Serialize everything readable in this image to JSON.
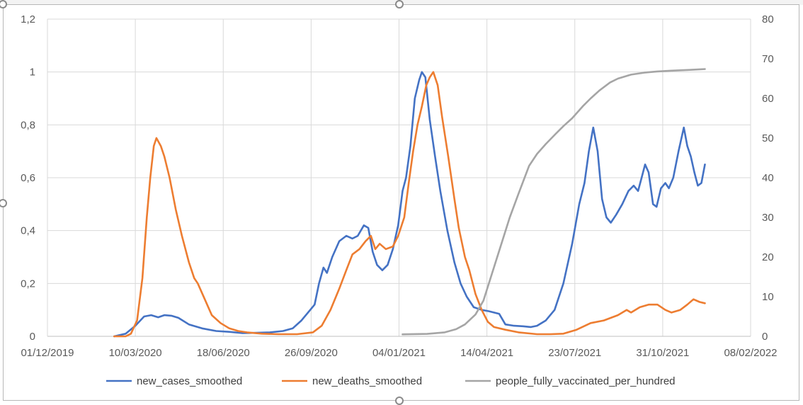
{
  "chart_data": {
    "type": "line",
    "title": "",
    "xlabel": "",
    "ylabel": "",
    "x_axis": {
      "min": "2019-12-01",
      "max": "2022-02-08",
      "tick_labels": [
        "01/12/2019",
        "10/03/2020",
        "18/06/2020",
        "26/09/2020",
        "04/01/2021",
        "14/04/2021",
        "23/07/2021",
        "31/10/2021",
        "08/02/2022"
      ],
      "tick_dates": [
        "2019-12-01",
        "2020-03-10",
        "2020-06-18",
        "2020-09-26",
        "2021-01-04",
        "2021-04-14",
        "2021-07-23",
        "2021-10-31",
        "2022-02-08"
      ]
    },
    "y_left": {
      "min": 0,
      "max": 1.2,
      "tick_values": [
        0,
        0.2,
        0.4,
        0.6,
        0.8,
        1,
        1.2
      ],
      "tick_labels": [
        "0",
        "0,2",
        "0,4",
        "0,6",
        "0,8",
        "1",
        "1,2"
      ]
    },
    "y_right": {
      "min": 0,
      "max": 80,
      "tick_values": [
        0,
        10,
        20,
        30,
        40,
        50,
        60,
        70,
        80
      ],
      "tick_labels": [
        "0",
        "10",
        "20",
        "30",
        "40",
        "50",
        "60",
        "70",
        "80"
      ]
    },
    "grid": true,
    "legend_position": "bottom",
    "series": [
      {
        "name": "new_cases_smoothed",
        "axis": "left",
        "color": "#4472c4",
        "points": [
          [
            "2020-02-15",
            0
          ],
          [
            "2020-02-28",
            0.01
          ],
          [
            "2020-03-10",
            0.04
          ],
          [
            "2020-03-20",
            0.075
          ],
          [
            "2020-03-28",
            0.08
          ],
          [
            "2020-04-05",
            0.072
          ],
          [
            "2020-04-12",
            0.08
          ],
          [
            "2020-04-20",
            0.078
          ],
          [
            "2020-04-28",
            0.07
          ],
          [
            "2020-05-10",
            0.045
          ],
          [
            "2020-05-25",
            0.03
          ],
          [
            "2020-06-10",
            0.02
          ],
          [
            "2020-06-25",
            0.017
          ],
          [
            "2020-07-10",
            0.012
          ],
          [
            "2020-07-25",
            0.013
          ],
          [
            "2020-08-10",
            0.015
          ],
          [
            "2020-08-25",
            0.02
          ],
          [
            "2020-09-05",
            0.03
          ],
          [
            "2020-09-15",
            0.06
          ],
          [
            "2020-09-25",
            0.1
          ],
          [
            "2020-09-30",
            0.12
          ],
          [
            "2020-10-05",
            0.2
          ],
          [
            "2020-10-10",
            0.26
          ],
          [
            "2020-10-14",
            0.24
          ],
          [
            "2020-10-20",
            0.3
          ],
          [
            "2020-10-28",
            0.36
          ],
          [
            "2020-11-05",
            0.38
          ],
          [
            "2020-11-12",
            0.37
          ],
          [
            "2020-11-18",
            0.38
          ],
          [
            "2020-11-25",
            0.42
          ],
          [
            "2020-11-30",
            0.41
          ],
          [
            "2020-12-05",
            0.32
          ],
          [
            "2020-12-10",
            0.27
          ],
          [
            "2020-12-16",
            0.25
          ],
          [
            "2020-12-22",
            0.27
          ],
          [
            "2020-12-28",
            0.33
          ],
          [
            "2021-01-03",
            0.42
          ],
          [
            "2021-01-08",
            0.55
          ],
          [
            "2021-01-12",
            0.6
          ],
          [
            "2021-01-17",
            0.72
          ],
          [
            "2021-01-22",
            0.9
          ],
          [
            "2021-01-27",
            0.97
          ],
          [
            "2021-01-30",
            1.0
          ],
          [
            "2021-02-03",
            0.98
          ],
          [
            "2021-02-08",
            0.82
          ],
          [
            "2021-02-14",
            0.68
          ],
          [
            "2021-02-20",
            0.55
          ],
          [
            "2021-02-28",
            0.4
          ],
          [
            "2021-03-08",
            0.28
          ],
          [
            "2021-03-15",
            0.2
          ],
          [
            "2021-03-22",
            0.15
          ],
          [
            "2021-03-30",
            0.11
          ],
          [
            "2021-04-08",
            0.1
          ],
          [
            "2021-04-16",
            0.095
          ],
          [
            "2021-04-22",
            0.09
          ],
          [
            "2021-04-28",
            0.085
          ],
          [
            "2021-05-05",
            0.045
          ],
          [
            "2021-05-15",
            0.04
          ],
          [
            "2021-05-25",
            0.038
          ],
          [
            "2021-06-03",
            0.035
          ],
          [
            "2021-06-10",
            0.04
          ],
          [
            "2021-06-20",
            0.06
          ],
          [
            "2021-06-30",
            0.1
          ],
          [
            "2021-07-10",
            0.2
          ],
          [
            "2021-07-20",
            0.35
          ],
          [
            "2021-07-28",
            0.5
          ],
          [
            "2021-08-03",
            0.58
          ],
          [
            "2021-08-08",
            0.7
          ],
          [
            "2021-08-13",
            0.79
          ],
          [
            "2021-08-18",
            0.7
          ],
          [
            "2021-08-23",
            0.52
          ],
          [
            "2021-08-28",
            0.45
          ],
          [
            "2021-09-02",
            0.43
          ],
          [
            "2021-09-08",
            0.46
          ],
          [
            "2021-09-15",
            0.5
          ],
          [
            "2021-09-22",
            0.55
          ],
          [
            "2021-09-28",
            0.57
          ],
          [
            "2021-10-03",
            0.55
          ],
          [
            "2021-10-07",
            0.6
          ],
          [
            "2021-10-11",
            0.65
          ],
          [
            "2021-10-15",
            0.62
          ],
          [
            "2021-10-20",
            0.5
          ],
          [
            "2021-10-24",
            0.49
          ],
          [
            "2021-10-29",
            0.56
          ],
          [
            "2021-11-03",
            0.58
          ],
          [
            "2021-11-07",
            0.56
          ],
          [
            "2021-11-12",
            0.6
          ],
          [
            "2021-11-18",
            0.7
          ],
          [
            "2021-11-24",
            0.79
          ],
          [
            "2021-11-28",
            0.72
          ],
          [
            "2021-12-02",
            0.68
          ],
          [
            "2021-12-06",
            0.62
          ],
          [
            "2021-12-10",
            0.57
          ],
          [
            "2021-12-14",
            0.58
          ],
          [
            "2021-12-18",
            0.65
          ]
        ]
      },
      {
        "name": "new_deaths_smoothed",
        "axis": "left",
        "color": "#ed7d31",
        "points": [
          [
            "2020-02-15",
            0
          ],
          [
            "2020-02-28",
            0
          ],
          [
            "2020-03-05",
            0.01
          ],
          [
            "2020-03-12",
            0.06
          ],
          [
            "2020-03-18",
            0.22
          ],
          [
            "2020-03-23",
            0.45
          ],
          [
            "2020-03-27",
            0.6
          ],
          [
            "2020-03-31",
            0.72
          ],
          [
            "2020-04-03",
            0.75
          ],
          [
            "2020-04-08",
            0.72
          ],
          [
            "2020-04-12",
            0.68
          ],
          [
            "2020-04-18",
            0.6
          ],
          [
            "2020-04-25",
            0.48
          ],
          [
            "2020-05-02",
            0.38
          ],
          [
            "2020-05-10",
            0.28
          ],
          [
            "2020-05-16",
            0.22
          ],
          [
            "2020-05-20",
            0.2
          ],
          [
            "2020-05-28",
            0.14
          ],
          [
            "2020-06-05",
            0.08
          ],
          [
            "2020-06-15",
            0.05
          ],
          [
            "2020-06-25",
            0.03
          ],
          [
            "2020-07-05",
            0.02
          ],
          [
            "2020-07-15",
            0.015
          ],
          [
            "2020-08-01",
            0.01
          ],
          [
            "2020-08-20",
            0.008
          ],
          [
            "2020-09-10",
            0.008
          ],
          [
            "2020-09-28",
            0.015
          ],
          [
            "2020-10-08",
            0.04
          ],
          [
            "2020-10-18",
            0.1
          ],
          [
            "2020-10-28",
            0.18
          ],
          [
            "2020-11-05",
            0.25
          ],
          [
            "2020-11-12",
            0.31
          ],
          [
            "2020-11-20",
            0.33
          ],
          [
            "2020-11-27",
            0.36
          ],
          [
            "2020-12-03",
            0.38
          ],
          [
            "2020-12-08",
            0.33
          ],
          [
            "2020-12-13",
            0.35
          ],
          [
            "2020-12-20",
            0.33
          ],
          [
            "2020-12-28",
            0.34
          ],
          [
            "2021-01-03",
            0.38
          ],
          [
            "2021-01-10",
            0.45
          ],
          [
            "2021-01-15",
            0.58
          ],
          [
            "2021-01-20",
            0.7
          ],
          [
            "2021-01-25",
            0.8
          ],
          [
            "2021-01-30",
            0.87
          ],
          [
            "2021-02-04",
            0.95
          ],
          [
            "2021-02-08",
            0.98
          ],
          [
            "2021-02-12",
            1.0
          ],
          [
            "2021-02-17",
            0.95
          ],
          [
            "2021-02-22",
            0.83
          ],
          [
            "2021-03-01",
            0.68
          ],
          [
            "2021-03-08",
            0.52
          ],
          [
            "2021-03-13",
            0.41
          ],
          [
            "2021-03-20",
            0.3
          ],
          [
            "2021-03-25",
            0.25
          ],
          [
            "2021-04-01",
            0.16
          ],
          [
            "2021-04-08",
            0.1
          ],
          [
            "2021-04-15",
            0.055
          ],
          [
            "2021-04-22",
            0.035
          ],
          [
            "2021-05-05",
            0.025
          ],
          [
            "2021-05-20",
            0.015
          ],
          [
            "2021-06-10",
            0.008
          ],
          [
            "2021-06-25",
            0.008
          ],
          [
            "2021-07-10",
            0.01
          ],
          [
            "2021-07-25",
            0.025
          ],
          [
            "2021-08-10",
            0.05
          ],
          [
            "2021-08-25",
            0.06
          ],
          [
            "2021-09-10",
            0.08
          ],
          [
            "2021-09-20",
            0.1
          ],
          [
            "2021-09-25",
            0.09
          ],
          [
            "2021-10-05",
            0.11
          ],
          [
            "2021-10-15",
            0.12
          ],
          [
            "2021-10-25",
            0.12
          ],
          [
            "2021-11-03",
            0.1
          ],
          [
            "2021-11-10",
            0.09
          ],
          [
            "2021-11-20",
            0.1
          ],
          [
            "2021-11-28",
            0.12
          ],
          [
            "2021-12-05",
            0.14
          ],
          [
            "2021-12-12",
            0.13
          ],
          [
            "2021-12-18",
            0.125
          ]
        ]
      },
      {
        "name": "people_fully_vaccinated_per_hundred",
        "axis": "right",
        "color": "#a5a5a5",
        "points": [
          [
            "2021-01-08",
            0.5
          ],
          [
            "2021-02-05",
            0.6
          ],
          [
            "2021-02-25",
            1.0
          ],
          [
            "2021-03-10",
            1.8
          ],
          [
            "2021-03-20",
            3.0
          ],
          [
            "2021-04-01",
            5.5
          ],
          [
            "2021-04-10",
            9
          ],
          [
            "2021-04-20",
            16
          ],
          [
            "2021-04-30",
            23
          ],
          [
            "2021-05-10",
            30
          ],
          [
            "2021-05-20",
            36
          ],
          [
            "2021-06-01",
            43
          ],
          [
            "2021-06-10",
            46
          ],
          [
            "2021-06-20",
            48.5
          ],
          [
            "2021-07-01",
            51
          ],
          [
            "2021-07-10",
            53
          ],
          [
            "2021-07-20",
            55
          ],
          [
            "2021-08-01",
            58
          ],
          [
            "2021-08-10",
            60
          ],
          [
            "2021-08-20",
            62
          ],
          [
            "2021-09-01",
            64
          ],
          [
            "2021-09-10",
            65
          ],
          [
            "2021-09-25",
            66
          ],
          [
            "2021-10-10",
            66.5
          ],
          [
            "2021-10-25",
            66.8
          ],
          [
            "2021-11-10",
            67
          ],
          [
            "2021-12-01",
            67.2
          ],
          [
            "2021-12-18",
            67.4
          ]
        ]
      }
    ]
  }
}
